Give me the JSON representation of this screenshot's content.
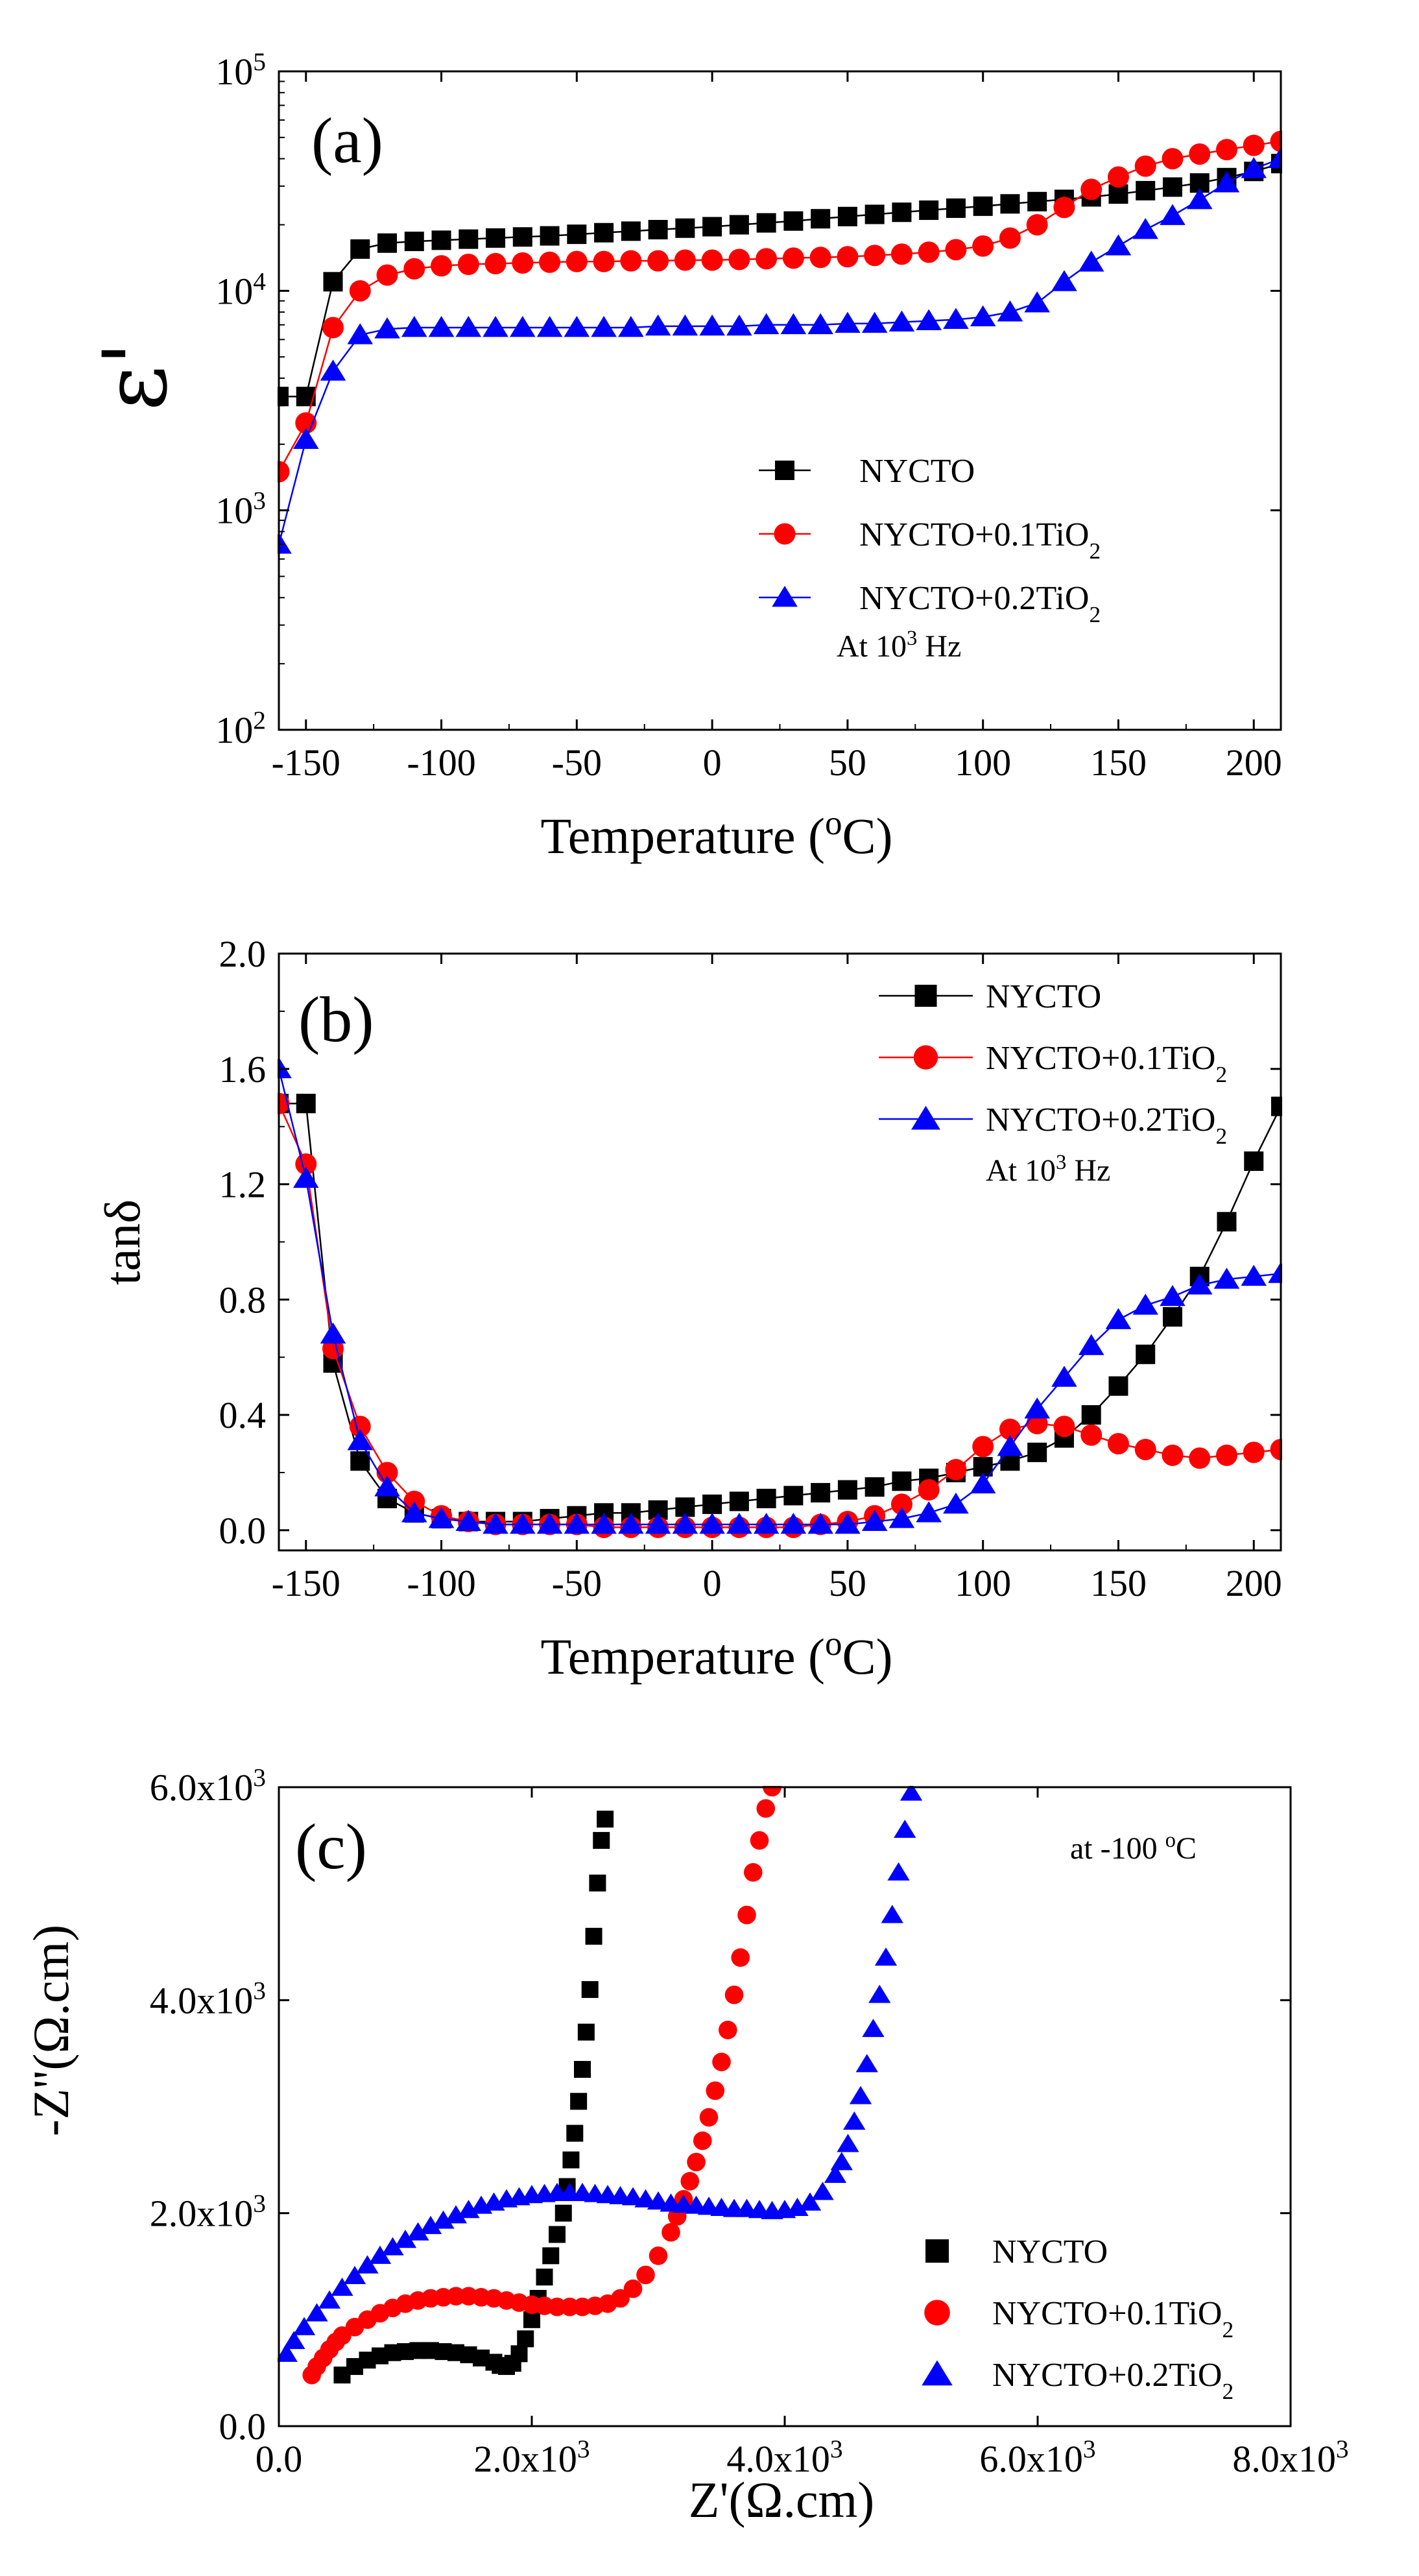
{
  "chart_data": [
    {
      "panel_label": "(a)",
      "type": "line",
      "xlabel": "Temperature (oC)",
      "ylabel": "ε'",
      "xlim": [
        -160,
        210
      ],
      "xticks": [
        -150,
        -100,
        -50,
        0,
        50,
        100,
        150,
        200
      ],
      "ylim": [
        100,
        100000
      ],
      "yscale": "log",
      "ytick_labels": [
        {
          "base": "10",
          "exp": "2"
        },
        {
          "base": "10",
          "exp": "3"
        },
        {
          "base": "10",
          "exp": "4"
        },
        {
          "base": "10",
          "exp": "5"
        }
      ],
      "legend_position": "center-right",
      "annotation": {
        "pre": "At 10",
        "sup": "3",
        "post": " Hz"
      },
      "grid": false,
      "series": [
        {
          "name": "NYCTO",
          "color": "#000000",
          "marker": "square",
          "x": [
            -160,
            -150,
            -140,
            -130,
            -120,
            -110,
            -100,
            -90,
            -80,
            -70,
            -60,
            -50,
            -40,
            -30,
            -20,
            -10,
            0,
            10,
            20,
            30,
            40,
            50,
            60,
            70,
            80,
            90,
            100,
            110,
            120,
            130,
            140,
            150,
            160,
            170,
            180,
            190,
            200,
            210
          ],
          "y": [
            3300,
            3300,
            11000,
            15500,
            16500,
            16800,
            17000,
            17200,
            17400,
            17600,
            17800,
            18100,
            18400,
            18700,
            19000,
            19300,
            19600,
            20000,
            20400,
            20800,
            21300,
            21800,
            22300,
            22800,
            23300,
            23800,
            24300,
            24900,
            25500,
            26100,
            26800,
            27600,
            28600,
            29700,
            31000,
            32800,
            35000,
            38000
          ]
        },
        {
          "name": "NYCTO+0.1TiO2",
          "color": "#ff0000",
          "marker": "circle",
          "x": [
            -160,
            -150,
            -140,
            -130,
            -120,
            -110,
            -100,
            -90,
            -80,
            -70,
            -60,
            -50,
            -40,
            -30,
            -20,
            -10,
            0,
            10,
            20,
            30,
            40,
            50,
            60,
            70,
            80,
            90,
            100,
            110,
            120,
            130,
            140,
            150,
            160,
            170,
            180,
            190,
            200,
            210
          ],
          "y": [
            1500,
            2500,
            6800,
            10000,
            11800,
            12600,
            13000,
            13200,
            13300,
            13400,
            13500,
            13600,
            13600,
            13700,
            13700,
            13800,
            13800,
            13900,
            14000,
            14100,
            14200,
            14300,
            14500,
            14700,
            15000,
            15400,
            16000,
            17400,
            20000,
            24000,
            29000,
            33000,
            37000,
            40000,
            42000,
            44000,
            46000,
            48000
          ]
        },
        {
          "name": "NYCTO+0.2TiO2",
          "color": "#0000ff",
          "marker": "triangle",
          "x": [
            -160,
            -150,
            -140,
            -130,
            -120,
            -110,
            -100,
            -90,
            -80,
            -70,
            -60,
            -50,
            -40,
            -30,
            -20,
            -10,
            0,
            10,
            20,
            30,
            40,
            50,
            60,
            70,
            80,
            90,
            100,
            110,
            120,
            130,
            140,
            150,
            160,
            170,
            180,
            190,
            200,
            210
          ],
          "y": [
            700,
            2100,
            4300,
            6300,
            6700,
            6800,
            6800,
            6800,
            6800,
            6800,
            6800,
            6800,
            6800,
            6800,
            6900,
            6900,
            6900,
            6900,
            7000,
            7000,
            7000,
            7100,
            7100,
            7200,
            7300,
            7400,
            7600,
            8000,
            8800,
            11000,
            13500,
            16000,
            19000,
            22000,
            26000,
            31000,
            36000,
            40000
          ]
        }
      ]
    },
    {
      "panel_label": "(b)",
      "type": "line",
      "xlabel": "Temperature (oC)",
      "ylabel": "tanδ",
      "xlim": [
        -160,
        210
      ],
      "xticks": [
        -150,
        -100,
        -50,
        0,
        50,
        100,
        150,
        200
      ],
      "ylim": [
        -0.07,
        2.0
      ],
      "yticks": [
        "0.0",
        "0.4",
        "0.8",
        "1.2",
        "1.6",
        "2.0"
      ],
      "legend_position": "top-right",
      "annotation": {
        "pre": "At 10",
        "sup": "3",
        "post": " Hz"
      },
      "grid": false,
      "series": [
        {
          "name": "NYCTO",
          "color": "#000000",
          "marker": "square",
          "x": [
            -160,
            -150,
            -140,
            -130,
            -120,
            -110,
            -100,
            -90,
            -80,
            -70,
            -60,
            -50,
            -40,
            -30,
            -20,
            -10,
            0,
            10,
            20,
            30,
            40,
            50,
            60,
            70,
            80,
            90,
            100,
            110,
            120,
            130,
            140,
            150,
            160,
            170,
            180,
            190,
            200,
            210
          ],
          "y": [
            1.48,
            1.48,
            0.58,
            0.24,
            0.11,
            0.06,
            0.04,
            0.03,
            0.03,
            0.03,
            0.04,
            0.05,
            0.06,
            0.06,
            0.07,
            0.08,
            0.09,
            0.1,
            0.11,
            0.12,
            0.13,
            0.14,
            0.15,
            0.17,
            0.18,
            0.2,
            0.22,
            0.24,
            0.27,
            0.32,
            0.4,
            0.5,
            0.61,
            0.74,
            0.88,
            1.07,
            1.28,
            1.47
          ]
        },
        {
          "name": "NYCTO+0.1TiO2",
          "color": "#ff0000",
          "marker": "circle",
          "x": [
            -160,
            -150,
            -140,
            -130,
            -120,
            -110,
            -100,
            -90,
            -80,
            -70,
            -60,
            -50,
            -40,
            -30,
            -20,
            -10,
            0,
            10,
            20,
            30,
            40,
            50,
            60,
            70,
            80,
            90,
            100,
            110,
            120,
            130,
            140,
            150,
            160,
            170,
            180,
            190,
            200,
            210
          ],
          "y": [
            1.48,
            1.27,
            0.63,
            0.36,
            0.2,
            0.1,
            0.05,
            0.03,
            0.02,
            0.02,
            0.02,
            0.02,
            0.01,
            0.01,
            0.01,
            0.01,
            0.01,
            0.01,
            0.01,
            0.01,
            0.02,
            0.03,
            0.05,
            0.09,
            0.14,
            0.21,
            0.29,
            0.35,
            0.37,
            0.36,
            0.33,
            0.3,
            0.28,
            0.26,
            0.25,
            0.26,
            0.27,
            0.28
          ]
        },
        {
          "name": "NYCTO+0.2TiO2",
          "color": "#0000ff",
          "marker": "triangle",
          "x": [
            -160,
            -150,
            -140,
            -130,
            -120,
            -110,
            -100,
            -90,
            -80,
            -70,
            -60,
            -50,
            -40,
            -30,
            -20,
            -10,
            0,
            10,
            20,
            30,
            40,
            50,
            60,
            70,
            80,
            90,
            100,
            110,
            120,
            130,
            140,
            150,
            160,
            170,
            180,
            190,
            200,
            210
          ],
          "y": [
            1.6,
            1.22,
            0.68,
            0.31,
            0.15,
            0.06,
            0.04,
            0.03,
            0.02,
            0.02,
            0.02,
            0.02,
            0.02,
            0.02,
            0.02,
            0.02,
            0.02,
            0.02,
            0.02,
            0.02,
            0.02,
            0.02,
            0.03,
            0.04,
            0.06,
            0.09,
            0.16,
            0.29,
            0.42,
            0.53,
            0.64,
            0.73,
            0.78,
            0.81,
            0.85,
            0.87,
            0.88,
            0.89
          ]
        }
      ]
    },
    {
      "panel_label": "(c)",
      "type": "scatter",
      "xlabel": "Z'(Ω.cm)",
      "ylabel": "-Z''(Ω.cm)",
      "xlim": [
        0,
        8000
      ],
      "xticks": [
        {
          "v": 0,
          "label": "0.0"
        },
        {
          "v": 2000,
          "label": "2.0x10",
          "exp": "3"
        },
        {
          "v": 4000,
          "label": "4.0x10",
          "exp": "3"
        },
        {
          "v": 6000,
          "label": "6.0x10",
          "exp": "3"
        },
        {
          "v": 8000,
          "label": "8.0x10",
          "exp": "3"
        }
      ],
      "ylim": [
        0,
        6000
      ],
      "yticks": [
        {
          "v": 0,
          "label": "0.0"
        },
        {
          "v": 2000,
          "label": "2.0x10",
          "exp": "3"
        },
        {
          "v": 4000,
          "label": "4.0x10",
          "exp": "3"
        },
        {
          "v": 6000,
          "label": "6.0x10",
          "exp": "3"
        }
      ],
      "legend_position": "bottom-right",
      "annotation": {
        "pre": "at -100 ",
        "sup": "o",
        "post": "C"
      },
      "grid": false,
      "series": [
        {
          "name": "NYCTO",
          "color": "#000000",
          "marker": "square",
          "x": [
            500,
            600,
            700,
            800,
            900,
            1000,
            1100,
            1200,
            1300,
            1400,
            1500,
            1600,
            1700,
            1750,
            1800,
            1850,
            1900,
            1950,
            2000,
            2050,
            2100,
            2150,
            2200,
            2250,
            2280,
            2310,
            2340,
            2370,
            2400,
            2430,
            2460,
            2490,
            2520,
            2550,
            2580
          ],
          "y": [
            480,
            560,
            620,
            660,
            690,
            700,
            710,
            710,
            700,
            690,
            670,
            640,
            600,
            570,
            560,
            590,
            680,
            820,
            1000,
            1200,
            1400,
            1600,
            1800,
            2000,
            2250,
            2500,
            2750,
            3050,
            3350,
            3700,
            4100,
            4600,
            5100,
            5500,
            5700
          ]
        },
        {
          "name": "NYCTO+0.1TiO2",
          "color": "#ff0000",
          "marker": "circle",
          "x": [
            260,
            300,
            350,
            400,
            450,
            500,
            600,
            700,
            800,
            900,
            1000,
            1100,
            1200,
            1300,
            1400,
            1500,
            1600,
            1700,
            1800,
            1900,
            2000,
            2100,
            2200,
            2300,
            2400,
            2500,
            2600,
            2700,
            2800,
            2900,
            3000,
            3100,
            3150,
            3200,
            3250,
            3300,
            3350,
            3400,
            3450,
            3500,
            3550,
            3600,
            3650,
            3700,
            3750,
            3800,
            3850,
            3900
          ],
          "y": [
            480,
            560,
            640,
            720,
            790,
            850,
            930,
            1000,
            1060,
            1110,
            1150,
            1180,
            1200,
            1210,
            1220,
            1220,
            1210,
            1200,
            1180,
            1160,
            1140,
            1130,
            1120,
            1120,
            1120,
            1130,
            1150,
            1200,
            1290,
            1420,
            1600,
            1820,
            1970,
            2130,
            2300,
            2480,
            2680,
            2900,
            3150,
            3420,
            3720,
            4050,
            4400,
            4800,
            5200,
            5500,
            5800,
            6000
          ]
        },
        {
          "name": "NYCTO+0.2TiO2",
          "color": "#0000ff",
          "marker": "triangle",
          "x": [
            60,
            120,
            200,
            300,
            400,
            500,
            600,
            700,
            800,
            900,
            1000,
            1100,
            1200,
            1300,
            1400,
            1500,
            1600,
            1700,
            1800,
            1900,
            2000,
            2100,
            2200,
            2300,
            2400,
            2500,
            2600,
            2700,
            2800,
            2900,
            3000,
            3100,
            3200,
            3300,
            3400,
            3500,
            3600,
            3700,
            3800,
            3900,
            4000,
            4100,
            4200,
            4300,
            4400,
            4450,
            4500,
            4550,
            4600,
            4650,
            4700,
            4750,
            4800,
            4850,
            4900,
            4950,
            5000
          ],
          "y": [
            680,
            800,
            930,
            1060,
            1180,
            1300,
            1410,
            1510,
            1600,
            1680,
            1750,
            1820,
            1880,
            1930,
            1980,
            2030,
            2070,
            2100,
            2130,
            2150,
            2170,
            2180,
            2190,
            2190,
            2190,
            2180,
            2170,
            2160,
            2150,
            2130,
            2110,
            2090,
            2080,
            2070,
            2060,
            2050,
            2040,
            2040,
            2030,
            2020,
            2030,
            2050,
            2100,
            2200,
            2360,
            2480,
            2650,
            2860,
            3100,
            3400,
            3730,
            4050,
            4400,
            4800,
            5200,
            5600,
            5950
          ]
        }
      ]
    }
  ]
}
